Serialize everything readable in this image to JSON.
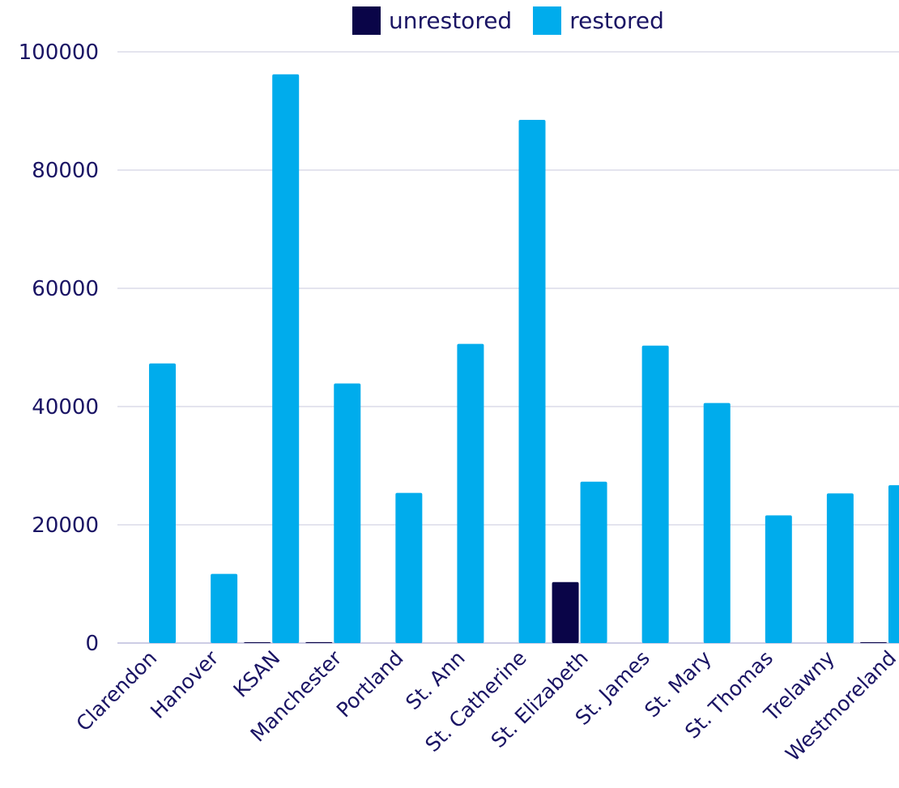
{
  "chart_data": {
    "type": "bar",
    "categories": [
      "Clarendon",
      "Hanover",
      "KSAN",
      "Manchester",
      "Portland",
      "St. Ann",
      "St. Catherine",
      "St. Elizabeth",
      "St. James",
      "St. Mary",
      "St. Thomas",
      "Trelawny",
      "Westmoreland"
    ],
    "series": [
      {
        "name": "unrestored",
        "color": "#0a0548",
        "values": [
          0,
          0,
          20,
          150,
          0,
          0,
          0,
          10300,
          0,
          0,
          0,
          0,
          100
        ]
      },
      {
        "name": "restored",
        "color": "#00acec",
        "values": [
          47300,
          11700,
          96200,
          43900,
          25400,
          50600,
          88500,
          27300,
          50300,
          40600,
          21600,
          25300,
          26700
        ]
      }
    ],
    "ylim": [
      0,
      100000
    ],
    "yticks": [
      "0",
      "20000",
      "40000",
      "60000",
      "80000",
      "100000"
    ],
    "grid": true,
    "legend": "top-center",
    "title": "",
    "xlabel": "",
    "ylabel": ""
  }
}
